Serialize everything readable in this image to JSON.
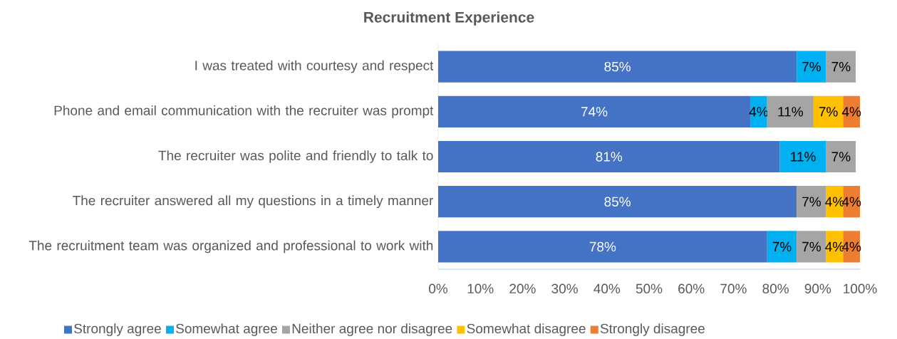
{
  "chart_data": {
    "type": "bar",
    "orientation": "horizontal",
    "stacked": true,
    "title": "Recruitment Experience",
    "categories": [
      "I was treated with courtesy and respect",
      "Phone and email communication with the recruiter was prompt",
      "The recruiter was polite and friendly to talk to",
      "The recruiter answered all my questions in a timely manner",
      "The recruitment team was organized and professional to work with"
    ],
    "series": [
      {
        "name": "Strongly agree",
        "color": "#4472c4",
        "values": [
          85,
          74,
          81,
          85,
          78
        ],
        "value_labels": [
          "85%",
          "74%",
          "81%",
          "85%",
          "78%"
        ]
      },
      {
        "name": "Somewhat agree",
        "color": "#00b0f0",
        "values": [
          7,
          4,
          11,
          null,
          7
        ],
        "value_labels": [
          "7%",
          "4%",
          "11%",
          null,
          "7%"
        ]
      },
      {
        "name": "Neither agree nor disagree",
        "color": "#a5a5a5",
        "values": [
          7,
          11,
          7,
          7,
          7
        ],
        "value_labels": [
          "7%",
          "11%",
          "7%",
          "7%",
          "7%"
        ]
      },
      {
        "name": "Somewhat disagree",
        "color": "#ffc000",
        "values": [
          null,
          7,
          null,
          4,
          4
        ],
        "value_labels": [
          null,
          "7%",
          null,
          "4%",
          "4%"
        ]
      },
      {
        "name": "Strongly disagree",
        "color": "#ed7d31",
        "values": [
          null,
          4,
          null,
          4,
          4
        ],
        "value_labels": [
          null,
          "4%",
          null,
          "4%",
          "4%"
        ]
      }
    ],
    "xlim": [
      0,
      100
    ],
    "xticks": [
      {
        "value": 0,
        "label": "0%"
      },
      {
        "value": 10,
        "label": "10%"
      },
      {
        "value": 20,
        "label": "20%"
      },
      {
        "value": 30,
        "label": "30%"
      },
      {
        "value": 40,
        "label": "40%"
      },
      {
        "value": 50,
        "label": "50%"
      },
      {
        "value": 60,
        "label": "60%"
      },
      {
        "value": 70,
        "label": "70%"
      },
      {
        "value": 80,
        "label": "80%"
      },
      {
        "value": 90,
        "label": "90%"
      },
      {
        "value": 100,
        "label": "100%"
      }
    ],
    "grid": false,
    "legend": "bottom"
  }
}
